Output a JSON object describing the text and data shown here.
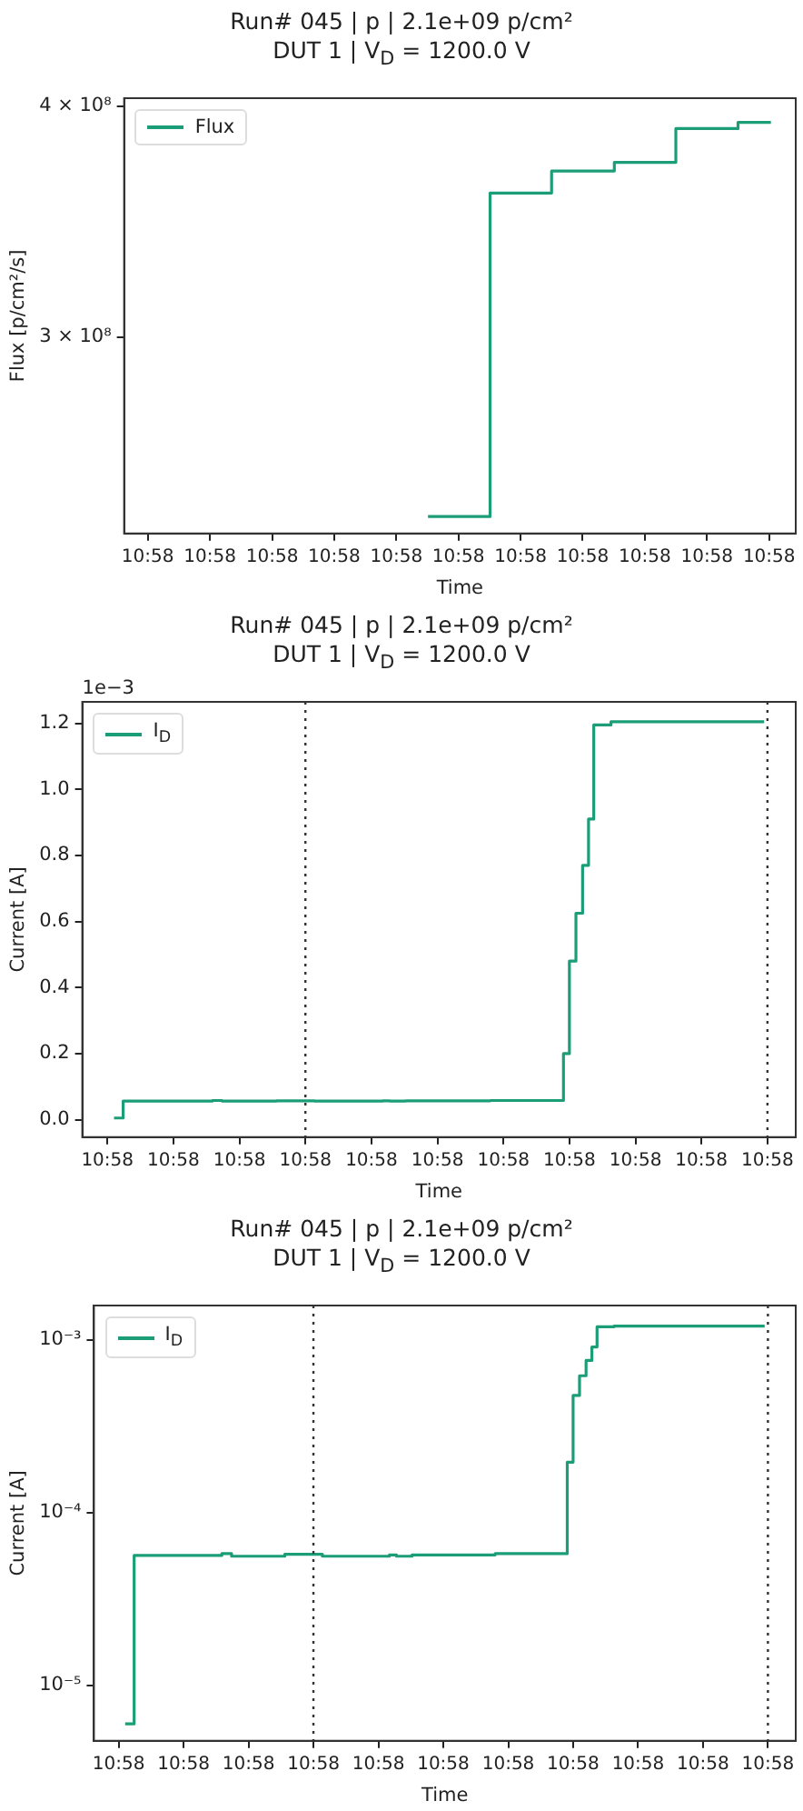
{
  "chart_data": [
    {
      "type": "step",
      "title": "Run# 045 | p | 2.1e+09 p/cm²",
      "subtitle": "DUT 1 | V$_{D}$ =  1200.0 V",
      "xlabel": "Time",
      "ylabel": "Flux [p/cm²/s]",
      "log": "y",
      "grid": false,
      "legend": "top left",
      "marker": "none",
      "line_style": "solid",
      "xlim": [
        10.966733,
        10.972738
      ],
      "ylim": [
        235000000.0,
        404000000.0
      ],
      "xticks": [
        {
          "value": 10.966944,
          "label": "10:58"
        },
        {
          "value": 10.9675,
          "label": "10:58"
        },
        {
          "value": 10.968056,
          "label": "10:58"
        },
        {
          "value": 10.968611,
          "label": "10:58"
        },
        {
          "value": 10.969167,
          "label": "10:58"
        },
        {
          "value": 10.969722,
          "label": "10:58"
        },
        {
          "value": 10.970278,
          "label": "10:58"
        },
        {
          "value": 10.970833,
          "label": "10:58"
        },
        {
          "value": 10.971389,
          "label": "10:58"
        },
        {
          "value": 10.971944,
          "label": "10:58"
        },
        {
          "value": 10.9725,
          "label": "10:58"
        }
      ],
      "yticks": [
        {
          "value": 300000000.0,
          "label": "3 × 10⁸"
        },
        {
          "value": 400000000.0,
          "label": "4 × 10⁸"
        }
      ],
      "series": [
        {
          "name": "Flux",
          "color": "#1b9e77",
          "x": [
            10.96945,
            10.970005,
            10.970555,
            10.971116,
            10.971666,
            10.972222,
            10.972516
          ],
          "values": [
            240000000.0,
            359000000.0,
            369000000.0,
            373000000.0,
            389000000.0,
            392000000.0,
            392000000.0
          ]
        }
      ]
    },
    {
      "type": "step",
      "title": "Run# 045 | p | 2.1e+09 p/cm²",
      "subtitle": "DUT 1 | V$_{D}$ =  1200.0 V",
      "xlabel": "Time",
      "ylabel": "Current [A]",
      "grid": false,
      "legend": "top left",
      "marker": "none",
      "line_style": "solid",
      "annotations": [
        "1e−3"
      ],
      "xlim": [
        10.966733,
        10.972738
      ],
      "ylim": [
        -0.053,
        1.265
      ],
      "xticks": [
        {
          "value": 10.966944,
          "label": "10:58"
        },
        {
          "value": 10.9675,
          "label": "10:58"
        },
        {
          "value": 10.968056,
          "label": "10:58"
        },
        {
          "value": 10.968611,
          "label": "10:58"
        },
        {
          "value": 10.969167,
          "label": "10:58"
        },
        {
          "value": 10.969722,
          "label": "10:58"
        },
        {
          "value": 10.970278,
          "label": "10:58"
        },
        {
          "value": 10.970833,
          "label": "10:58"
        },
        {
          "value": 10.971389,
          "label": "10:58"
        },
        {
          "value": 10.971944,
          "label": "10:58"
        },
        {
          "value": 10.9725,
          "label": "10:58"
        }
      ],
      "yticks": [
        {
          "value": 0,
          "label": "0.0"
        },
        {
          "value": 0.2,
          "label": "0.2"
        },
        {
          "value": 0.4,
          "label": "0.4"
        },
        {
          "value": 0.6,
          "label": "0.6"
        },
        {
          "value": 0.8,
          "label": "0.8"
        },
        {
          "value": 1,
          "label": "1.0"
        },
        {
          "value": 1.2,
          "label": "1.2"
        }
      ],
      "ref_lines": [
        {
          "axis": "x",
          "value": 10.968611,
          "color": "#333333",
          "line_style": "dotted"
        },
        {
          "axis": "x",
          "value": 10.9725,
          "color": "#333333",
          "line_style": "dotted"
        }
      ],
      "series": [
        {
          "name": "I$_{D}$",
          "color": "#1b9e77",
          "x": [
            10.967,
            10.967077,
            10.967827,
            10.967911,
            10.968366,
            10.968688,
            10.969261,
            10.969322,
            10.969455,
            10.970166,
            10.970783,
            10.970833,
            10.970888,
            10.970944,
            10.970994,
            10.971038,
            10.971183,
            10.972472
          ],
          "values": [
            0.005,
            0.056,
            0.058,
            0.056,
            0.057,
            0.056,
            0.057,
            0.056,
            0.057,
            0.058,
            0.2,
            0.48,
            0.625,
            0.77,
            0.91,
            1.195,
            1.205,
            1.205
          ]
        }
      ]
    },
    {
      "type": "step",
      "title": "Run# 045 | p | 2.1e+09 p/cm²",
      "subtitle": "DUT 1 | V$_{D}$ =  1200.0 V",
      "xlabel": "Time",
      "ylabel": "Current [A]",
      "log": "y",
      "grid": false,
      "legend": "top left",
      "marker": "none",
      "line_style": "solid",
      "xlim": [
        10.966733,
        10.972738
      ],
      "ylim": [
        4.79e-06,
        0.00158
      ],
      "xticks": [
        {
          "value": 10.966944,
          "label": "10:58"
        },
        {
          "value": 10.9675,
          "label": "10:58"
        },
        {
          "value": 10.968056,
          "label": "10:58"
        },
        {
          "value": 10.968611,
          "label": "10:58"
        },
        {
          "value": 10.969167,
          "label": "10:58"
        },
        {
          "value": 10.969722,
          "label": "10:58"
        },
        {
          "value": 10.970278,
          "label": "10:58"
        },
        {
          "value": 10.970833,
          "label": "10:58"
        },
        {
          "value": 10.971389,
          "label": "10:58"
        },
        {
          "value": 10.971944,
          "label": "10:58"
        },
        {
          "value": 10.9725,
          "label": "10:58"
        }
      ],
      "yticks": [
        {
          "value": 1e-05,
          "label": "10⁻⁵"
        },
        {
          "value": 0.0001,
          "label": "10⁻⁴"
        },
        {
          "value": 0.001,
          "label": "10⁻³"
        }
      ],
      "ref_lines": [
        {
          "axis": "x",
          "value": 10.968611,
          "color": "#333333",
          "line_style": "dotted"
        },
        {
          "axis": "x",
          "value": 10.9725,
          "color": "#333333",
          "line_style": "dotted"
        }
      ],
      "series": [
        {
          "name": "I$_{D}$",
          "color": "#1b9e77",
          "x": [
            10.967,
            10.967077,
            10.967827,
            10.967911,
            10.968366,
            10.968688,
            10.969261,
            10.969322,
            10.969455,
            10.970166,
            10.970783,
            10.970833,
            10.970888,
            10.970944,
            10.970994,
            10.971038,
            10.971183,
            10.972472
          ],
          "values": [
            6e-06,
            5.66e-05,
            5.8e-05,
            5.6e-05,
            5.75e-05,
            5.6e-05,
            5.7e-05,
            5.6e-05,
            5.7e-05,
            5.8e-05,
            0.000196,
            0.000477,
            0.00062,
            0.00076,
            0.00091,
            0.00119,
            0.0012,
            0.0012
          ]
        }
      ]
    }
  ]
}
